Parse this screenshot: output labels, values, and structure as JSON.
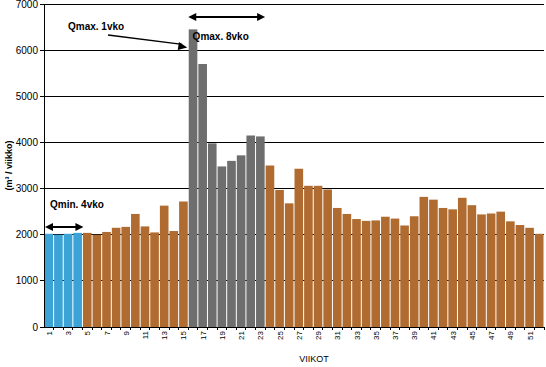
{
  "chart_data": {
    "type": "bar",
    "x_label": "VIIKOT",
    "y_label": "(m³ / viikko)",
    "annotations": [
      "Qmax. 1vko",
      "Qmax. 8vko",
      "Qmin. 4vko"
    ],
    "categories": [
      "1",
      null,
      "3",
      null,
      "5",
      null,
      "7",
      null,
      "9",
      null,
      "11",
      null,
      "13",
      null,
      "15",
      null,
      "17",
      null,
      "19",
      null,
      "21",
      null,
      "23",
      null,
      "25",
      null,
      "27",
      null,
      "29",
      null,
      "31",
      null,
      "33",
      null,
      "35",
      null,
      "37",
      null,
      "39",
      null,
      "41",
      null,
      "43",
      null,
      "45",
      null,
      "47",
      null,
      "49",
      null,
      "51",
      null
    ],
    "values": [
      2020,
      2000,
      2020,
      2040,
      2040,
      2000,
      2060,
      2150,
      2170,
      2450,
      2180,
      2050,
      2630,
      2080,
      2720,
      6450,
      5700,
      3980,
      3480,
      3600,
      3720,
      4150,
      4130,
      3500,
      2970,
      2680,
      3430,
      3060,
      3060,
      2980,
      2580,
      2450,
      2340,
      2300,
      2310,
      2390,
      2350,
      2200,
      2400,
      2820,
      2760,
      2580,
      2550,
      2800,
      2640,
      2440,
      2460,
      2500,
      2290,
      2210,
      2150,
      2020
    ],
    "colors": [
      "#3ba3d6",
      "#3ba3d6",
      "#3ba3d6",
      "#3ba3d6",
      "#b06c30",
      "#b06c30",
      "#b06c30",
      "#b06c30",
      "#b06c30",
      "#b06c30",
      "#b06c30",
      "#b06c30",
      "#b06c30",
      "#b06c30",
      "#b06c30",
      "#6e6e6e",
      "#6e6e6e",
      "#6e6e6e",
      "#6e6e6e",
      "#6e6e6e",
      "#6e6e6e",
      "#6e6e6e",
      "#6e6e6e",
      "#b06c30",
      "#b06c30",
      "#b06c30",
      "#b06c30",
      "#b06c30",
      "#b06c30",
      "#b06c30",
      "#b06c30",
      "#b06c30",
      "#b06c30",
      "#b06c30",
      "#b06c30",
      "#b06c30",
      "#b06c30",
      "#b06c30",
      "#b06c30",
      "#b06c30",
      "#b06c30",
      "#b06c30",
      "#b06c30",
      "#b06c30",
      "#b06c30",
      "#b06c30",
      "#b06c30",
      "#b06c30",
      "#b06c30",
      "#b06c30",
      "#b06c30",
      "#b06c30"
    ],
    "ylim": [
      0,
      7000
    ],
    "yticks": [
      0,
      1000,
      2000,
      3000,
      4000,
      5000,
      6000,
      7000
    ],
    "grid": true
  }
}
